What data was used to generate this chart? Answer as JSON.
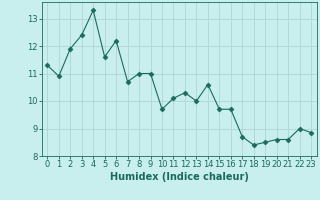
{
  "x": [
    0,
    1,
    2,
    3,
    4,
    5,
    6,
    7,
    8,
    9,
    10,
    11,
    12,
    13,
    14,
    15,
    16,
    17,
    18,
    19,
    20,
    21,
    22,
    23
  ],
  "y": [
    11.3,
    10.9,
    11.9,
    12.4,
    13.3,
    11.6,
    12.2,
    10.7,
    11.0,
    11.0,
    9.7,
    10.1,
    10.3,
    10.0,
    10.6,
    9.7,
    9.7,
    8.7,
    8.4,
    8.5,
    8.6,
    8.6,
    9.0,
    8.85
  ],
  "line_color": "#1a6b5a",
  "marker": "D",
  "marker_size": 2.5,
  "bg_color": "#c8eeee",
  "grid_color": "#b0d4d4",
  "xlabel": "Humidex (Indice chaleur)",
  "ylim": [
    8,
    13.6
  ],
  "xlim": [
    -0.5,
    23.5
  ],
  "yticks": [
    8,
    9,
    10,
    11,
    12,
    13
  ],
  "xticks": [
    0,
    1,
    2,
    3,
    4,
    5,
    6,
    7,
    8,
    9,
    10,
    11,
    12,
    13,
    14,
    15,
    16,
    17,
    18,
    19,
    20,
    21,
    22,
    23
  ],
  "tick_fontsize": 6,
  "xlabel_fontsize": 7,
  "tick_color": "#1a6b5a",
  "axis_color": "#1a6b5a"
}
